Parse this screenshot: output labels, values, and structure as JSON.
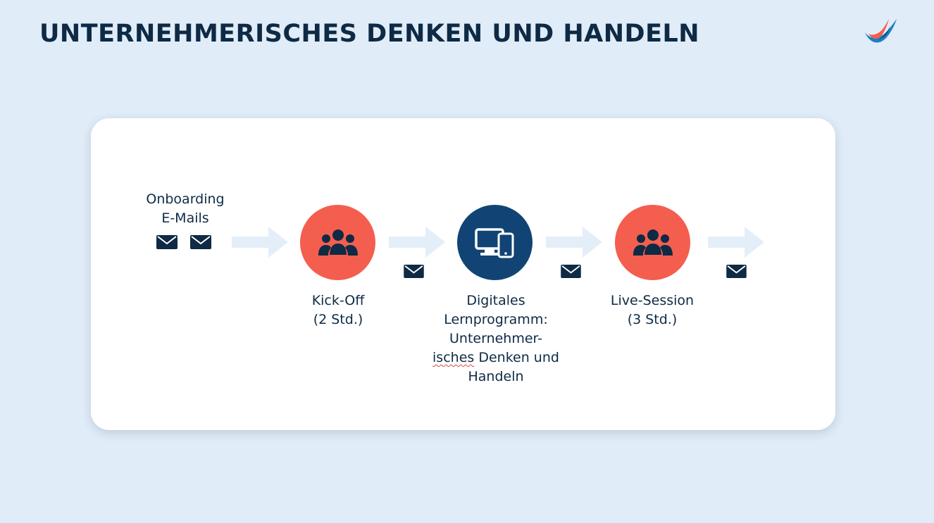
{
  "header": {
    "title": "UNTERNEHMERISCHES DENKEN UND HANDELN"
  },
  "colors": {
    "background": "#e0ecf8",
    "card": "#ffffff",
    "coral": "#f45e4e",
    "navy": "#114474",
    "text": "#0e2a44",
    "arrow": "#e4eef8"
  },
  "flow": {
    "onboarding": {
      "line1": "Onboarding",
      "line2": "E-Mails",
      "icon": "envelope-icon"
    },
    "kickoff": {
      "line1": "Kick-Off",
      "line2": "(2 Std.)",
      "icon": "people-group-icon"
    },
    "digital": {
      "line1": "Digitales",
      "line2": "Lernprogramm:",
      "line3": "Unternehmer-",
      "line4a": "isches",
      "line4b": " Denken und",
      "line5": "Handeln",
      "icon": "devices-icon"
    },
    "live": {
      "line1": "Live-Session",
      "line2": "(3 Std.)",
      "icon": "people-group-icon"
    },
    "connector_icons": [
      "arrow-right-icon",
      "envelope-icon"
    ]
  }
}
